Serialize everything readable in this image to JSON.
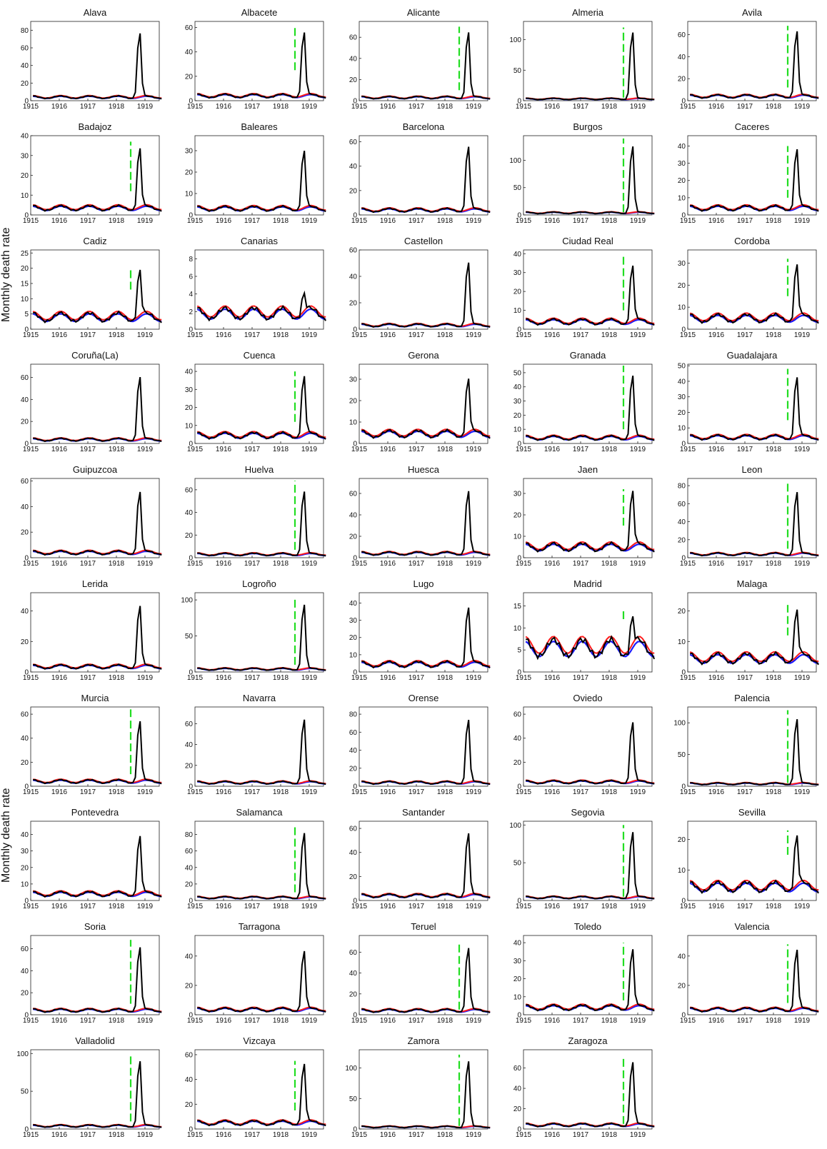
{
  "y_axis_label": "Monthly death rate",
  "colors": {
    "observed": "#000000",
    "model_red": "#ff1a1a",
    "model_blue": "#1a1aff",
    "marker": "#22dd22",
    "axis": "#222222"
  },
  "x_ticks": [
    "1915",
    "1916",
    "1917",
    "1918",
    "1919"
  ],
  "chart_data": [
    {
      "type": "line",
      "title": "Alava",
      "ylim": [
        0,
        90
      ],
      "yticks": [
        0,
        20,
        40,
        60,
        80
      ],
      "peak": 85,
      "base": 4,
      "marker": null
    },
    {
      "type": "line",
      "title": "Albacete",
      "ylim": [
        0,
        65
      ],
      "yticks": [
        0,
        20,
        40,
        60
      ],
      "peak": 62,
      "base": 4,
      "marker": [
        25,
        60
      ]
    },
    {
      "type": "line",
      "title": "Alicante",
      "ylim": [
        0,
        75
      ],
      "yticks": [
        0,
        20,
        40,
        60
      ],
      "peak": 72,
      "base": 3,
      "marker": [
        10,
        70
      ]
    },
    {
      "type": "line",
      "title": "Almeria",
      "ylim": [
        0,
        130
      ],
      "yticks": [
        0,
        50,
        100
      ],
      "peak": 125,
      "base": 3,
      "marker": [
        5,
        120
      ]
    },
    {
      "type": "line",
      "title": "Avila",
      "ylim": [
        0,
        72
      ],
      "yticks": [
        0,
        20,
        40,
        60
      ],
      "peak": 70,
      "base": 4,
      "marker": [
        12,
        68
      ]
    },
    {
      "type": "line",
      "title": "Badajoz",
      "ylim": [
        0,
        40
      ],
      "yticks": [
        0,
        10,
        20,
        30,
        40
      ],
      "peak": 37,
      "base": 3.5,
      "marker": [
        12,
        37
      ]
    },
    {
      "type": "line",
      "title": "Baleares",
      "ylim": [
        0,
        37
      ],
      "yticks": [
        0,
        10,
        20,
        30
      ],
      "peak": 33,
      "base": 3,
      "marker": null
    },
    {
      "type": "line",
      "title": "Barcelona",
      "ylim": [
        0,
        65
      ],
      "yticks": [
        0,
        20,
        40,
        60
      ],
      "peak": 62,
      "base": 4,
      "marker": null
    },
    {
      "type": "line",
      "title": "Burgos",
      "ylim": [
        0,
        145
      ],
      "yticks": [
        0,
        50,
        100
      ],
      "peak": 140,
      "base": 4,
      "marker": [
        5,
        140
      ]
    },
    {
      "type": "line",
      "title": "Caceres",
      "ylim": [
        0,
        46
      ],
      "yticks": [
        0,
        10,
        20,
        30,
        40
      ],
      "peak": 42,
      "base": 4,
      "marker": [
        10,
        40
      ]
    },
    {
      "type": "line",
      "title": "Cadiz",
      "ylim": [
        0,
        26
      ],
      "yticks": [
        0,
        5,
        10,
        15,
        20,
        25
      ],
      "peak": 21,
      "base": 4,
      "marker": [
        13,
        20
      ]
    },
    {
      "type": "line",
      "title": "Canarias",
      "ylim": [
        0,
        9
      ],
      "yticks": [
        0,
        2,
        4,
        6,
        8
      ],
      "peak": 4.2,
      "base": 1.8,
      "marker": null
    },
    {
      "type": "line",
      "title": "Castellon",
      "ylim": [
        0,
        60
      ],
      "yticks": [
        0,
        20,
        40,
        60
      ],
      "peak": 56,
      "base": 3,
      "marker": null
    },
    {
      "type": "line",
      "title": "Ciudad Real",
      "ylim": [
        0,
        42
      ],
      "yticks": [
        0,
        10,
        20,
        30,
        40
      ],
      "peak": 37,
      "base": 4,
      "marker": [
        10,
        40
      ]
    },
    {
      "type": "line",
      "title": "Cordoba",
      "ylim": [
        0,
        36
      ],
      "yticks": [
        0,
        10,
        20,
        30
      ],
      "peak": 32,
      "base": 5,
      "marker": [
        15,
        32
      ]
    },
    {
      "type": "line",
      "title": "Coruña(La)",
      "ylim": [
        0,
        72
      ],
      "yticks": [
        0,
        20,
        40,
        60
      ],
      "peak": 67,
      "base": 3.5,
      "marker": null
    },
    {
      "type": "line",
      "title": "Cuenca",
      "ylim": [
        0,
        44
      ],
      "yticks": [
        0,
        10,
        20,
        30,
        40
      ],
      "peak": 41,
      "base": 4.5,
      "marker": [
        12,
        40
      ]
    },
    {
      "type": "line",
      "title": "Gerona",
      "ylim": [
        0,
        37
      ],
      "yticks": [
        0,
        10,
        20,
        30
      ],
      "peak": 33,
      "base": 4.5,
      "marker": null
    },
    {
      "type": "line",
      "title": "Granada",
      "ylim": [
        0,
        56
      ],
      "yticks": [
        0,
        10,
        20,
        30,
        40,
        50
      ],
      "peak": 53,
      "base": 4,
      "marker": [
        10,
        55
      ]
    },
    {
      "type": "line",
      "title": "Guadalajara",
      "ylim": [
        0,
        51
      ],
      "yticks": [
        0,
        10,
        20,
        30,
        40,
        50
      ],
      "peak": 47,
      "base": 4,
      "marker": [
        15,
        48
      ]
    },
    {
      "type": "line",
      "title": "Guipuzcoa",
      "ylim": [
        0,
        62
      ],
      "yticks": [
        0,
        20,
        40,
        60
      ],
      "peak": 57,
      "base": 4,
      "marker": null
    },
    {
      "type": "line",
      "title": "Huelva",
      "ylim": [
        0,
        70
      ],
      "yticks": [
        0,
        20,
        40,
        60
      ],
      "peak": 65,
      "base": 3,
      "marker": [
        7,
        68
      ]
    },
    {
      "type": "line",
      "title": "Huesca",
      "ylim": [
        0,
        74
      ],
      "yticks": [
        0,
        20,
        40,
        60
      ],
      "peak": 69,
      "base": 4,
      "marker": null
    },
    {
      "type": "line",
      "title": "Jaen",
      "ylim": [
        0,
        37
      ],
      "yticks": [
        0,
        10,
        20,
        30
      ],
      "peak": 34,
      "base": 5,
      "marker": [
        15,
        32
      ]
    },
    {
      "type": "line",
      "title": "Leon",
      "ylim": [
        0,
        88
      ],
      "yticks": [
        0,
        20,
        40,
        60,
        80
      ],
      "peak": 81,
      "base": 4,
      "marker": [
        10,
        85
      ]
    },
    {
      "type": "line",
      "title": "Lerida",
      "ylim": [
        0,
        52
      ],
      "yticks": [
        0,
        20,
        40
      ],
      "peak": 48,
      "base": 3.5,
      "marker": null
    },
    {
      "type": "line",
      "title": "Logroño",
      "ylim": [
        0,
        110
      ],
      "yticks": [
        0,
        50,
        100
      ],
      "peak": 104,
      "base": 4,
      "marker": [
        10,
        105
      ]
    },
    {
      "type": "line",
      "title": "Lugo",
      "ylim": [
        0,
        46
      ],
      "yticks": [
        0,
        10,
        20,
        30,
        40
      ],
      "peak": 41,
      "base": 4.5,
      "marker": null
    },
    {
      "type": "line",
      "title": "Madrid",
      "ylim": [
        0,
        18
      ],
      "yticks": [
        0,
        5,
        10,
        15
      ],
      "peak": 13,
      "base": 5.5,
      "marker": [
        12,
        14
      ]
    },
    {
      "type": "line",
      "title": "Malaga",
      "ylim": [
        0,
        26
      ],
      "yticks": [
        0,
        10,
        20
      ],
      "peak": 22,
      "base": 4.5,
      "marker": [
        12,
        22
      ]
    },
    {
      "type": "line",
      "title": "Murcia",
      "ylim": [
        0,
        66
      ],
      "yticks": [
        0,
        20,
        40,
        60
      ],
      "peak": 60,
      "base": 4,
      "marker": [
        10,
        64
      ]
    },
    {
      "type": "line",
      "title": "Navarra",
      "ylim": [
        0,
        76
      ],
      "yticks": [
        0,
        20,
        40,
        60
      ],
      "peak": 71,
      "base": 3.5,
      "marker": null
    },
    {
      "type": "line",
      "title": "Orense",
      "ylim": [
        0,
        88
      ],
      "yticks": [
        0,
        20,
        40,
        60,
        80
      ],
      "peak": 82,
      "base": 4,
      "marker": null
    },
    {
      "type": "line",
      "title": "Oviedo",
      "ylim": [
        0,
        66
      ],
      "yticks": [
        0,
        20,
        40,
        60
      ],
      "peak": 59,
      "base": 3.5,
      "marker": null
    },
    {
      "type": "line",
      "title": "Palencia",
      "ylim": [
        0,
        125
      ],
      "yticks": [
        0,
        50,
        100
      ],
      "peak": 118,
      "base": 4,
      "marker": [
        5,
        120
      ]
    },
    {
      "type": "line",
      "title": "Pontevedra",
      "ylim": [
        0,
        48
      ],
      "yticks": [
        0,
        10,
        20,
        30,
        40
      ],
      "peak": 43,
      "base": 4,
      "marker": null
    },
    {
      "type": "line",
      "title": "Salamanca",
      "ylim": [
        0,
        96
      ],
      "yticks": [
        0,
        20,
        40,
        60,
        80
      ],
      "peak": 91,
      "base": 3.5,
      "marker": [
        10,
        90
      ]
    },
    {
      "type": "line",
      "title": "Santander",
      "ylim": [
        0,
        66
      ],
      "yticks": [
        0,
        20,
        40,
        60
      ],
      "peak": 62,
      "base": 4,
      "marker": null
    },
    {
      "type": "line",
      "title": "Segovia",
      "ylim": [
        0,
        105
      ],
      "yticks": [
        0,
        50,
        100
      ],
      "peak": 101,
      "base": 4,
      "marker": [
        5,
        100
      ]
    },
    {
      "type": "line",
      "title": "Sevilla",
      "ylim": [
        0,
        26
      ],
      "yticks": [
        0,
        10,
        20
      ],
      "peak": 23,
      "base": 4.5,
      "marker": [
        15,
        23
      ]
    },
    {
      "type": "line",
      "title": "Soria",
      "ylim": [
        0,
        72
      ],
      "yticks": [
        0,
        20,
        40,
        60
      ],
      "peak": 68,
      "base": 4,
      "marker": [
        10,
        68
      ]
    },
    {
      "type": "line",
      "title": "Tarragona",
      "ylim": [
        0,
        54
      ],
      "yticks": [
        0,
        20,
        40
      ],
      "peak": 48,
      "base": 3.5,
      "marker": null
    },
    {
      "type": "line",
      "title": "Teruel",
      "ylim": [
        0,
        76
      ],
      "yticks": [
        0,
        20,
        40,
        60
      ],
      "peak": 71,
      "base": 4,
      "marker": [
        5,
        70
      ]
    },
    {
      "type": "line",
      "title": "Toledo",
      "ylim": [
        0,
        44
      ],
      "yticks": [
        0,
        10,
        20,
        30,
        40
      ],
      "peak": 40,
      "base": 4,
      "marker": [
        8,
        40
      ]
    },
    {
      "type": "line",
      "title": "Valencia",
      "ylim": [
        0,
        54
      ],
      "yticks": [
        0,
        20,
        40
      ],
      "peak": 49,
      "base": 3.5,
      "marker": [
        8,
        48
      ]
    },
    {
      "type": "line",
      "title": "Valladolid",
      "ylim": [
        0,
        105
      ],
      "yticks": [
        0,
        50,
        100
      ],
      "peak": 100,
      "base": 4,
      "marker": [
        10,
        100
      ]
    },
    {
      "type": "line",
      "title": "Vizcaya",
      "ylim": [
        0,
        64
      ],
      "yticks": [
        0,
        20,
        40,
        60
      ],
      "peak": 58,
      "base": 5,
      "marker": [
        15,
        55
      ]
    },
    {
      "type": "line",
      "title": "Zamora",
      "ylim": [
        0,
        130
      ],
      "yticks": [
        0,
        50,
        100
      ],
      "peak": 124,
      "base": 3.5,
      "marker": [
        5,
        122
      ]
    },
    {
      "type": "line",
      "title": "Zaragoza",
      "ylim": [
        0,
        78
      ],
      "yticks": [
        0,
        20,
        40,
        60
      ],
      "peak": 73,
      "base": 4,
      "marker": [
        5,
        72
      ]
    }
  ]
}
